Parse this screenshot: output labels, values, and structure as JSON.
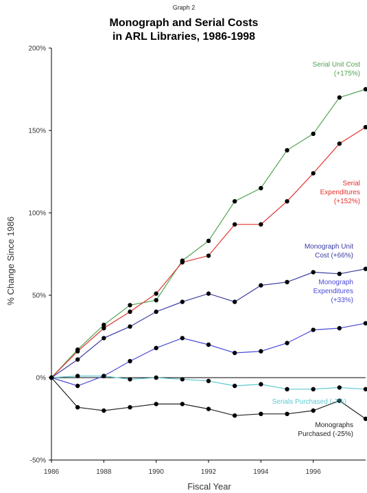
{
  "chart_data": {
    "type": "line",
    "supertitle": "Graph 2",
    "title_lines": [
      "Monograph and Serial Costs",
      "in ARL Libraries, 1986-1998"
    ],
    "xlabel": "Fiscal Year",
    "ylabel": "% Change Since 1986",
    "x": [
      1986,
      1987,
      1988,
      1989,
      1990,
      1991,
      1992,
      1993,
      1994,
      1995,
      1996,
      1997,
      1998
    ],
    "x_ticks": [
      "1986",
      "1988",
      "1990",
      "1992",
      "1994",
      "1996"
    ],
    "y_ticks": [
      "-50%",
      "0%",
      "50%",
      "100%",
      "150%",
      "200%"
    ],
    "xlim": [
      1986,
      1998
    ],
    "ylim": [
      -50,
      200
    ],
    "zero_line": true,
    "grid": false,
    "series": [
      {
        "name": "Serial Unit Cost (+175%)",
        "label_lines": [
          "Serial Unit Cost",
          "(+175%)"
        ],
        "color": "#4fa34f",
        "values": [
          0,
          17,
          32,
          44,
          47,
          71,
          83,
          107,
          115,
          138,
          148,
          170,
          175
        ]
      },
      {
        "name": "Serial Expenditures (+152%)",
        "label_lines": [
          "Serial",
          "Expenditures",
          "(+152%)"
        ],
        "color": "#e0302a",
        "values": [
          0,
          16,
          30,
          40,
          51,
          70,
          74,
          93,
          93,
          107,
          124,
          142,
          152
        ]
      },
      {
        "name": "Monograph Unit Cost (+66%)",
        "label_lines": [
          "Monograph Unit",
          "Cost (+66%)"
        ],
        "color": "#3a3aa0",
        "values": [
          0,
          11,
          24,
          31,
          40,
          46,
          51,
          46,
          56,
          58,
          64,
          63,
          66
        ]
      },
      {
        "name": "Monograph Expenditures (+33%)",
        "label_lines": [
          "Monograph",
          "Expenditures",
          "(+33%)"
        ],
        "color": "#4848d8",
        "values": [
          0,
          -5,
          1,
          10,
          18,
          24,
          20,
          15,
          16,
          21,
          29,
          30,
          33
        ]
      },
      {
        "name": "Serials Purchased (-7%)",
        "label_lines": [
          "Serials Purchased (-7%)"
        ],
        "color": "#5cc8d0",
        "values": [
          0,
          1,
          1,
          -1,
          0,
          -1,
          -2,
          -5,
          -4,
          -7,
          -7,
          -6,
          -7
        ]
      },
      {
        "name": "Monographs Purchased (-25%)",
        "label_lines": [
          "Monographs",
          "Purchased (-25%)"
        ],
        "color": "#222222",
        "values": [
          0,
          -18,
          -20,
          -18,
          -16,
          -16,
          -19,
          -23,
          -22,
          -22,
          -20,
          -14,
          -25
        ]
      }
    ]
  }
}
